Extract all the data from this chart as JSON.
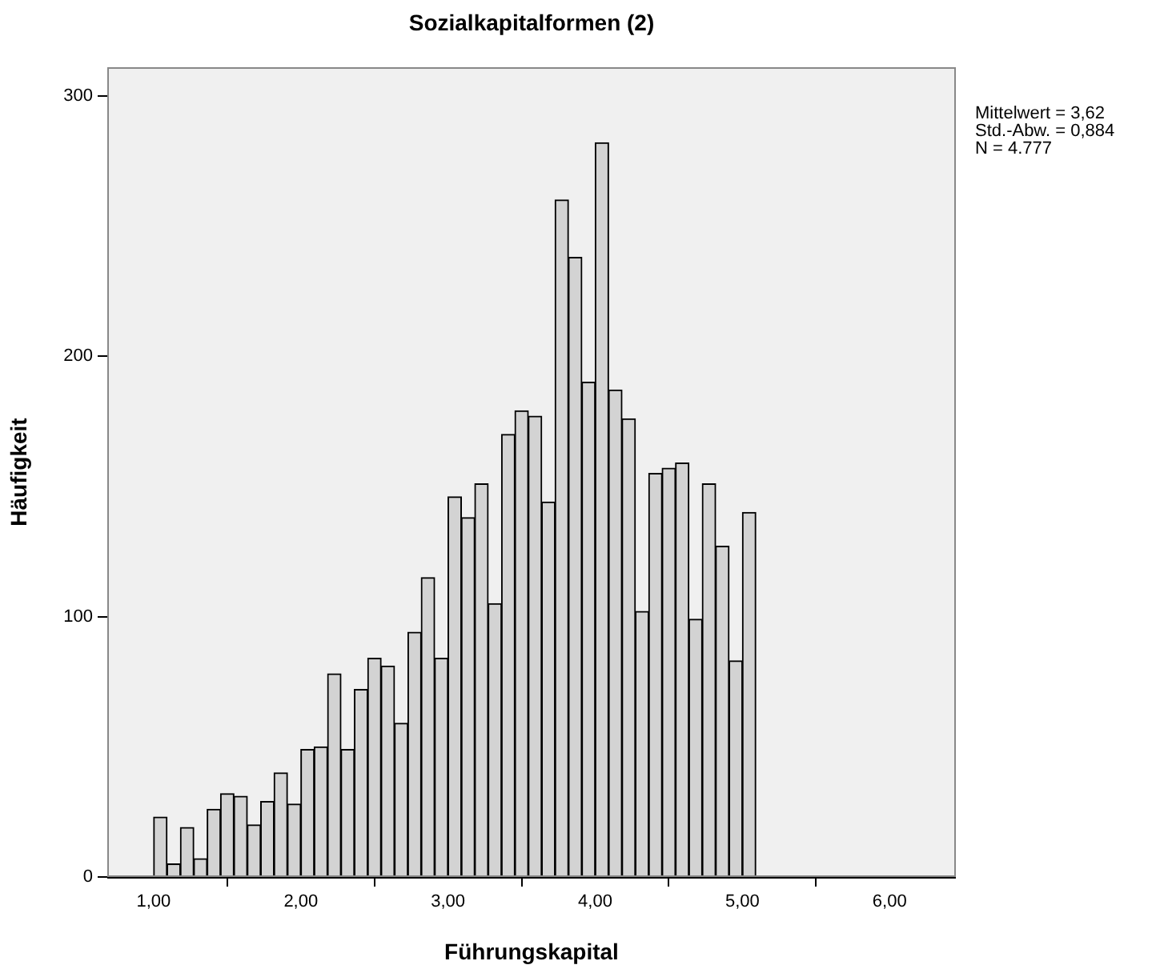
{
  "chart_data": {
    "type": "histogram",
    "title": "Sozialkapitalformen (2)",
    "xlabel": "Führungskapital",
    "ylabel": "Häufigkeit",
    "annotations": [
      "Mittelwert = 3,62",
      "Std.-Abw. = 0,884",
      "N = 4.777"
    ],
    "bins": [
      1,
      1.0909,
      1.1818,
      1.2727,
      1.3636,
      1.4545,
      1.5455,
      1.6364,
      1.7273,
      1.8182,
      1.9091,
      2,
      2.0909,
      2.1818,
      2.2727,
      2.3636,
      2.4545,
      2.5455,
      2.6364,
      2.7273,
      2.8182,
      2.9091,
      3,
      3.0909,
      3.1818,
      3.2727,
      3.3636,
      3.4545,
      3.5455,
      3.6364,
      3.7273,
      3.8182,
      3.9091,
      4,
      4.0909,
      4.1818,
      4.2727,
      4.3636,
      4.4545,
      4.5455,
      4.6364,
      4.7273,
      4.8182,
      4.9091,
      5,
      5.0909
    ],
    "values": [
      23,
      5,
      19,
      7,
      26,
      32,
      31,
      20,
      29,
      40,
      28,
      49,
      50,
      78,
      49,
      72,
      84,
      81,
      59,
      94,
      115,
      84,
      146,
      138,
      151,
      105,
      170,
      179,
      177,
      144,
      260,
      238,
      190,
      282,
      187,
      176,
      102,
      155,
      157,
      159,
      99,
      151,
      127,
      83,
      140
    ],
    "color": "#d3d3d3",
    "xlim": [
      0.685,
      6.45
    ],
    "xticks": [
      {
        "value": 1,
        "label": "1,00"
      },
      {
        "value": 2,
        "label": "2,00"
      },
      {
        "value": 3,
        "label": "3,00"
      },
      {
        "value": 4,
        "label": "4,00"
      },
      {
        "value": 5,
        "label": "5,00"
      },
      {
        "value": 6,
        "label": "6,00"
      }
    ],
    "ylim": [
      0,
      311
    ],
    "yticks": [
      0,
      100,
      200,
      300
    ],
    "grid": false,
    "legend": false
  }
}
